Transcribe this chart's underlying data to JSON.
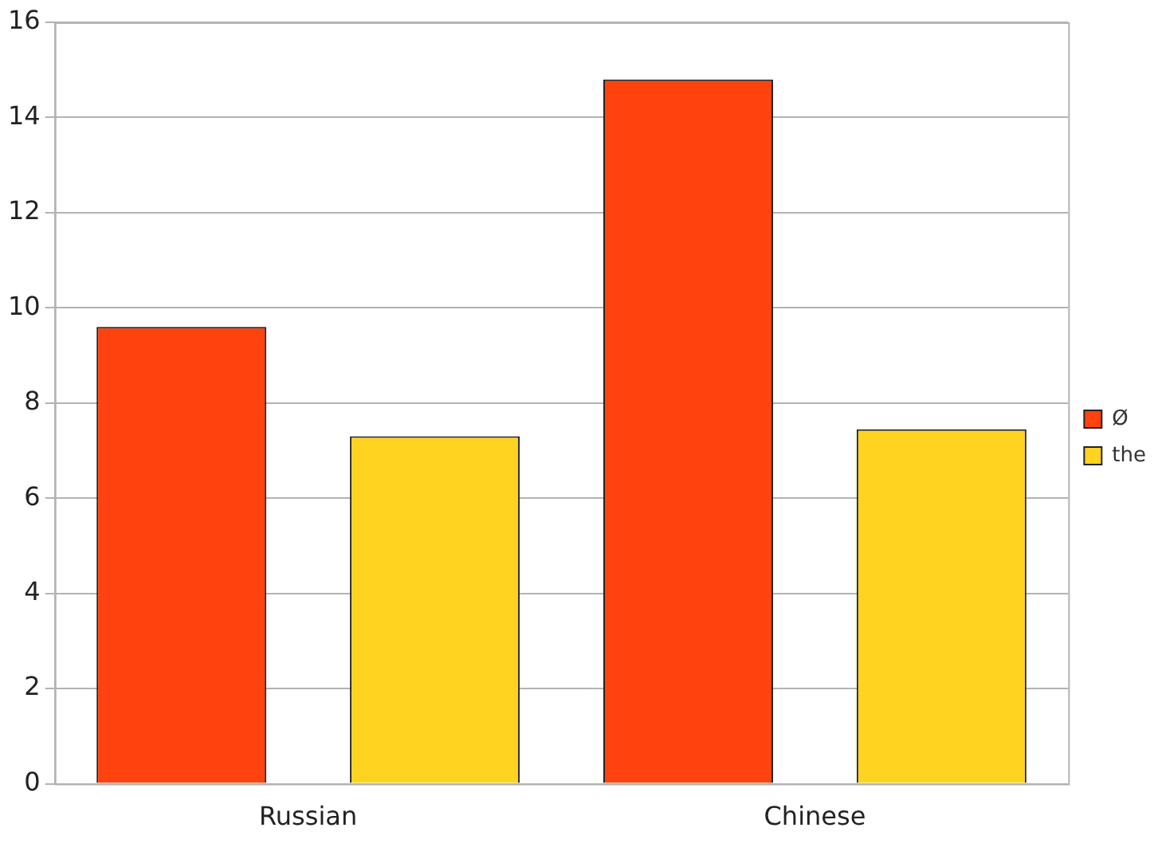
{
  "chart_data": {
    "type": "bar",
    "categories": [
      "Russian",
      "Chinese"
    ],
    "series": [
      {
        "name": "Ø",
        "color": "#ff420e",
        "values": [
          9.6,
          14.8
        ]
      },
      {
        "name": "the",
        "color": "#ffd320",
        "values": [
          7.3,
          7.45
        ]
      }
    ],
    "ylim": [
      0,
      16
    ],
    "yticks": [
      0,
      2,
      4,
      6,
      8,
      10,
      12,
      14,
      16
    ],
    "grid": "y",
    "legend": "right"
  }
}
